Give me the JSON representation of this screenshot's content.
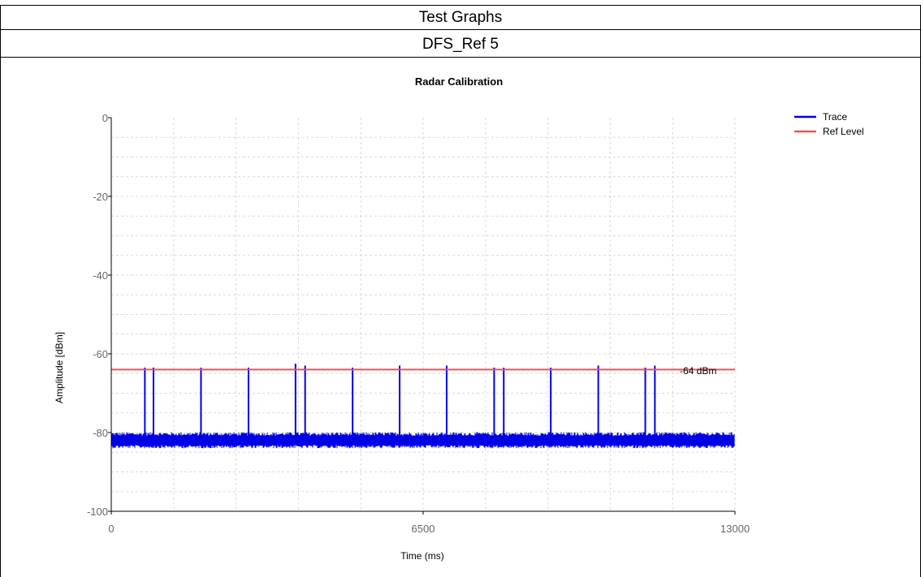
{
  "header": {
    "title": "Test Graphs",
    "subtitle": "DFS_Ref 5"
  },
  "colors": {
    "trace": "#0000e6",
    "ref_level": "#f05050",
    "grid": "#d8d8d8"
  },
  "chart_data": {
    "type": "line",
    "title": "Radar Calibration",
    "xlabel": "Time (ms)",
    "ylabel": "Amplitude [dBm]",
    "xlim": [
      0,
      13000
    ],
    "ylim": [
      -100,
      0
    ],
    "x_ticks": [
      "0",
      "6500",
      "13000"
    ],
    "y_ticks": [
      "0",
      "-20",
      "-40",
      "-60",
      "-80",
      "-100"
    ],
    "grid": true,
    "legend_position": "top-right",
    "annotation": "-64 dBm",
    "series": [
      {
        "name": "Trace",
        "noise_floor": -82,
        "pulse_times": [
          700,
          880,
          1870,
          2860,
          3840,
          4040,
          5030,
          6010,
          6990,
          7980,
          8180,
          9160,
          10150,
          11130,
          11330
        ],
        "pulse_peaks": [
          -63.5,
          -63.5,
          -63.5,
          -63.5,
          -62.5,
          -63,
          -63.5,
          -63,
          -63,
          -63.5,
          -63.5,
          -63.5,
          -63,
          -63.5,
          -63
        ]
      },
      {
        "name": "Ref Level",
        "value": -64
      }
    ]
  }
}
